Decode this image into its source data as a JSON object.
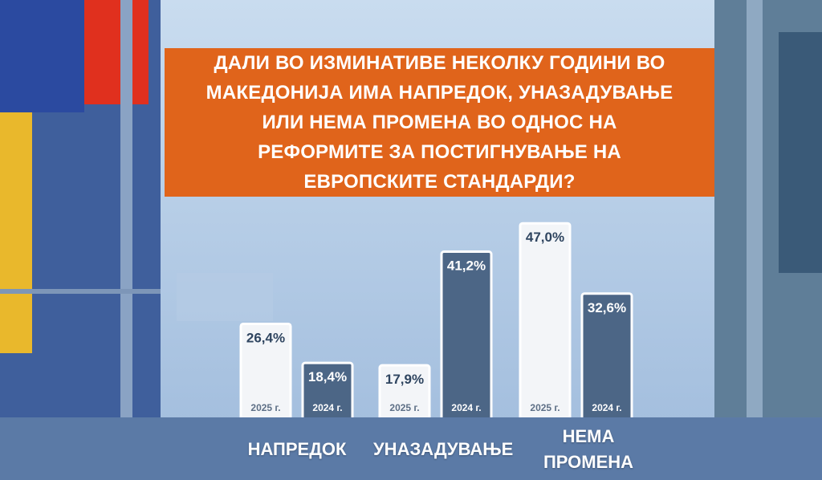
{
  "chart_data": {
    "type": "bar",
    "title": "ДАЛИ ВО ИЗМИНАТИВЕ НЕКОЛКУ ГОДИНИ ВО МАКЕДОНИЈА ИМА НАПРЕДОК, УНАЗАДУВАЊЕ ИЛИ НЕМА ПРОМЕНА ВО ОДНОС НА РЕФОРМИТЕ ЗА ПОСТИГНУВАЊЕ НА ЕВРОПСКИТЕ СТАНДАРДИ?",
    "categories": [
      "НАПРЕДОК",
      "УНАЗАДУВАЊЕ",
      "НЕМА ПРОМЕНА"
    ],
    "series": [
      {
        "name": "2025 г.",
        "color": "#f3f5f8",
        "values": [
          26.4,
          17.9,
          47
        ],
        "value_labels": [
          "26,4%",
          "17,9%",
          "47,0%"
        ]
      },
      {
        "name": "2024 г.",
        "color": "#4c6686",
        "values": [
          18.4,
          41.2,
          32.6
        ],
        "value_labels": [
          "18,4%",
          "41,2%",
          "32,6%"
        ]
      }
    ]
  }
}
